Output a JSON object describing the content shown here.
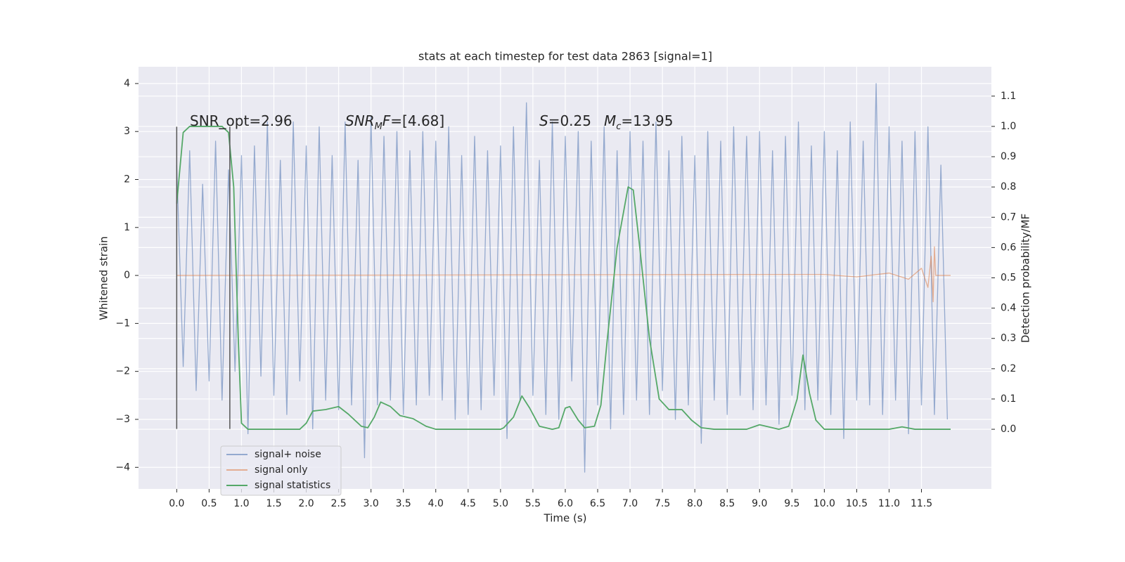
{
  "chart_data": {
    "type": "line",
    "title": "stats at each timestep for test data 2863 [signal=1]",
    "xlabel": "Time (s)",
    "ylabel": "Whitened strain",
    "y2label": "Detection probability/MF",
    "xlim": [
      -0.59,
      12.58
    ],
    "ylim": [
      -4.45,
      4.35
    ],
    "y2lim": [
      -0.197,
      1.197
    ],
    "xticks": [
      {
        "value": 0,
        "label": "0.0"
      },
      0.5,
      {
        "value": 1,
        "label": "1.0"
      },
      1.5,
      {
        "value": 2,
        "label": "2.0"
      },
      2.5,
      {
        "value": 3,
        "label": "3.0"
      },
      3.5,
      {
        "value": 4,
        "label": "4.0"
      },
      4.5,
      {
        "value": 5,
        "label": "5.0"
      },
      5.5,
      {
        "value": 6,
        "label": "6.0"
      },
      6.5,
      {
        "value": 7,
        "label": "7.0"
      },
      7.5,
      {
        "value": 8,
        "label": "8.0"
      },
      8.5,
      {
        "value": 9,
        "label": "9.0"
      },
      9.5,
      {
        "value": 10,
        "label": "10.0"
      },
      10.5,
      {
        "value": 11,
        "label": "11.0"
      },
      11.5
    ],
    "yticks": [
      {
        "value": -4,
        "label": "−4"
      },
      {
        "value": -3,
        "label": "−3"
      },
      {
        "value": -2,
        "label": "−2"
      },
      {
        "value": -1,
        "label": "−1"
      },
      0,
      1,
      2,
      3,
      4
    ],
    "y2ticks": [
      {
        "value": 0,
        "label": "0.0"
      },
      0.1,
      0.2,
      0.3,
      0.4,
      0.5,
      0.6,
      0.7,
      0.8,
      0.9,
      {
        "value": 1,
        "label": "1.0"
      },
      1.1
    ],
    "grid": true,
    "legend": "lower left",
    "vlines": [
      {
        "x": 0,
        "ymin": -3.2,
        "ymax": 3.1
      },
      {
        "x": 0.82,
        "ymin": -3.2,
        "ymax": 3.1
      }
    ],
    "annotations": [
      {
        "parts": [
          {
            "text": "SNR_opt=2.96"
          }
        ]
      },
      {
        "parts": [
          {
            "text": "SNR",
            "italic": true
          },
          {
            "text": "M",
            "italic": true,
            "sub": true
          },
          {
            "text": "F",
            "italic": true
          },
          {
            "text": "=[4.68]"
          }
        ]
      },
      {
        "parts": [
          {
            "text": "S",
            "italic": true
          },
          {
            "text": "=0.25"
          }
        ]
      },
      {
        "parts": [
          {
            "text": "M",
            "italic": true
          },
          {
            "text": "c",
            "italic": true,
            "sub": true
          },
          {
            "text": "=13.95"
          }
        ]
      }
    ],
    "series": [
      {
        "name": "signal+ noise",
        "color": "#4c72b0",
        "x": [
          0,
          0.1,
          0.2,
          0.3,
          0.4,
          0.5,
          0.6,
          0.7,
          0.8,
          0.9,
          1,
          1.1,
          1.2,
          1.3,
          1.4,
          1.5,
          1.6,
          1.7,
          1.8,
          1.9,
          2,
          2.1,
          2.2,
          2.3,
          2.4,
          2.5,
          2.6,
          2.7,
          2.8,
          2.9,
          3,
          3.1,
          3.2,
          3.3,
          3.4,
          3.5,
          3.6,
          3.7,
          3.8,
          3.9,
          4,
          4.1,
          4.2,
          4.3,
          4.4,
          4.5,
          4.6,
          4.7,
          4.8,
          4.9,
          5,
          5.1,
          5.2,
          5.3,
          5.4,
          5.5,
          5.6,
          5.7,
          5.8,
          5.9,
          6,
          6.1,
          6.2,
          6.3,
          6.4,
          6.5,
          6.6,
          6.7,
          6.8,
          6.9,
          7,
          7.1,
          7.2,
          7.3,
          7.4,
          7.5,
          7.6,
          7.7,
          7.8,
          7.9,
          8,
          8.1,
          8.2,
          8.3,
          8.4,
          8.5,
          8.6,
          8.7,
          8.8,
          8.9,
          9,
          9.1,
          9.2,
          9.3,
          9.4,
          9.5,
          9.6,
          9.7,
          9.8,
          9.9,
          10,
          10.1,
          10.2,
          10.3,
          10.4,
          10.5,
          10.6,
          10.7,
          10.8,
          10.9,
          11,
          11.1,
          11.2,
          11.3,
          11.4,
          11.5,
          11.6,
          11.7,
          11.8,
          11.9
        ],
        "values": [
          2.3,
          -1.9,
          2.6,
          -2.4,
          1.9,
          -2.2,
          2.8,
          -2.6,
          2.2,
          -2.0,
          2.5,
          -3.3,
          2.7,
          -2.1,
          3.2,
          -2.5,
          2.4,
          -2.9,
          3.2,
          -2.2,
          2.7,
          -3.2,
          3.1,
          -2.6,
          2.5,
          -2.8,
          3.2,
          -2.7,
          2.4,
          -3.8,
          3.3,
          -2.7,
          2.9,
          -2.6,
          3.0,
          -2.9,
          2.6,
          -2.7,
          3.0,
          -2.5,
          2.8,
          -2.6,
          3.1,
          -3.0,
          2.5,
          -2.9,
          2.9,
          -2.8,
          2.6,
          -2.5,
          2.7,
          -3.4,
          3.1,
          -2.6,
          3.6,
          -2.5,
          2.4,
          -2.9,
          3.2,
          -3.0,
          2.9,
          -2.2,
          3.0,
          -4.1,
          2.8,
          -2.7,
          3.1,
          -3.2,
          2.6,
          -2.9,
          3.0,
          -2.6,
          2.8,
          -2.9,
          3.2,
          -2.4,
          2.6,
          -3.0,
          2.9,
          -2.7,
          2.5,
          -3.5,
          3.0,
          -2.6,
          2.8,
          -2.9,
          3.1,
          -2.5,
          2.9,
          -2.8,
          3.0,
          -2.7,
          2.6,
          -3.1,
          2.9,
          -2.5,
          3.2,
          -2.8,
          2.7,
          -2.6,
          3.0,
          -2.9,
          2.6,
          -3.4,
          3.2,
          -2.6,
          2.8,
          -2.7,
          4.0,
          -2.9,
          3.1,
          -2.6,
          2.8,
          -3.3,
          3.0,
          -2.7,
          3.1,
          -2.9,
          2.3,
          -3.0
        ]
      },
      {
        "name": "signal only",
        "color": "#dd8452",
        "x": [
          0,
          10,
          10.5,
          11,
          11.3,
          11.5,
          11.6,
          11.65,
          11.68,
          11.7,
          11.72,
          11.95
        ],
        "values": [
          0,
          0.02,
          -0.03,
          0.05,
          -0.08,
          0.15,
          -0.25,
          0.4,
          -0.55,
          0.6,
          0,
          0
        ]
      },
      {
        "name": "signal statistics",
        "color": "#55a868",
        "axis": "y2",
        "x": [
          0,
          0.1,
          0.2,
          0.5,
          0.7,
          0.8,
          0.88,
          0.95,
          1,
          1.1,
          1.9,
          2,
          2.1,
          2.3,
          2.5,
          2.65,
          2.85,
          2.95,
          3.05,
          3.15,
          3.3,
          3.45,
          3.65,
          3.85,
          4,
          5,
          5.05,
          5.2,
          5.33,
          5.45,
          5.6,
          5.8,
          5.9,
          6,
          6.07,
          6.2,
          6.3,
          6.45,
          6.55,
          6.65,
          6.8,
          6.97,
          7.05,
          7.15,
          7.3,
          7.45,
          7.6,
          7.8,
          7.95,
          8.1,
          8.3,
          8.8,
          9,
          9.3,
          9.45,
          9.58,
          9.67,
          9.77,
          9.87,
          10,
          11,
          11.2,
          11.4,
          11.95
        ],
        "values": [
          0.745,
          0.98,
          1,
          1,
          1,
          0.98,
          0.8,
          0.3,
          0.02,
          0,
          0,
          0.02,
          0.06,
          0.065,
          0.075,
          0.05,
          0.01,
          0.005,
          0.04,
          0.09,
          0.075,
          0.045,
          0.035,
          0.01,
          0,
          0,
          0.005,
          0.04,
          0.11,
          0.07,
          0.01,
          0,
          0.005,
          0.07,
          0.075,
          0.03,
          0.005,
          0.01,
          0.08,
          0.3,
          0.6,
          0.8,
          0.79,
          0.6,
          0.3,
          0.1,
          0.065,
          0.065,
          0.03,
          0.005,
          0,
          0,
          0.015,
          0,
          0.01,
          0.1,
          0.245,
          0.12,
          0.03,
          0,
          0,
          0.008,
          0,
          0
        ]
      }
    ]
  }
}
